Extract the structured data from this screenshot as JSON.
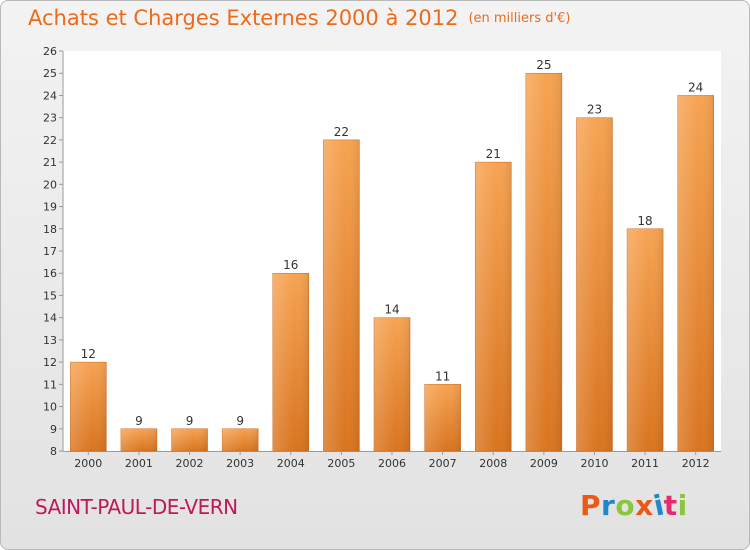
{
  "title": "Achats et Charges Externes 2000 à 2012",
  "unit": "(en milliers d'€)",
  "commune": "SAINT-PAUL-DE-VERN",
  "logo": {
    "text": "Proxiti",
    "colors": [
      "#e8591a",
      "#1e88c8",
      "#8cc63f",
      "#e8591a",
      "#1e88c8",
      "#e52a6f",
      "#8cc63f"
    ]
  },
  "colors": {
    "bar_top": "#f6a352",
    "bar_bottom": "#d9741f",
    "accent": "#ec6b1b"
  },
  "chart_data": {
    "type": "bar",
    "title": "Achats et Charges Externes 2000 à 2012",
    "categories": [
      "2000",
      "2001",
      "2002",
      "2003",
      "2004",
      "2005",
      "2006",
      "2007",
      "2008",
      "2009",
      "2010",
      "2011",
      "2012"
    ],
    "values": [
      12,
      9,
      9,
      9,
      16,
      22,
      14,
      11,
      21,
      25,
      23,
      18,
      24
    ],
    "ylim": [
      8,
      26
    ],
    "yticks": [
      8,
      9,
      10,
      11,
      12,
      13,
      14,
      15,
      16,
      17,
      18,
      19,
      20,
      21,
      22,
      23,
      24,
      25,
      26
    ],
    "grid": false,
    "data_labels": true
  }
}
